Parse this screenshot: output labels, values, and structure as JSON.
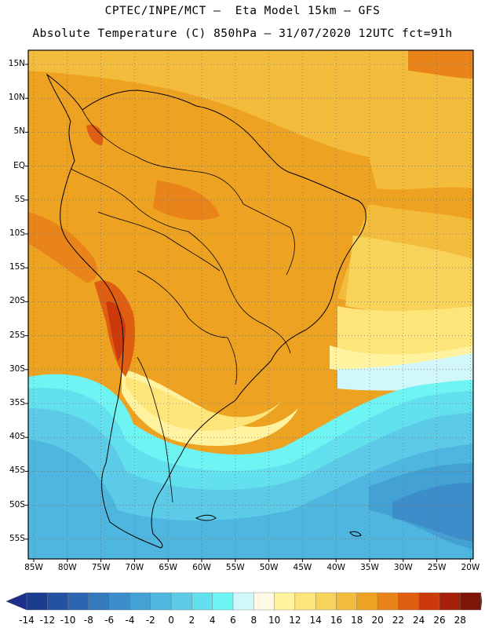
{
  "header": {
    "line1": "CPTEC/INPE/MCT –  Eta Model 15km – GFS",
    "line2": "Absolute Temperature (C) 850hPa – 31/07/2020 12UTC fct=91h"
  },
  "latitude_labels": [
    "15N",
    "10N",
    "5N",
    "EQ",
    "5S",
    "10S",
    "15S",
    "20S",
    "25S",
    "30S",
    "35S",
    "40S",
    "45S",
    "50S",
    "55S"
  ],
  "longitude_labels": [
    "85W",
    "80W",
    "75W",
    "70W",
    "65W",
    "60W",
    "55W",
    "50W",
    "45W",
    "40W",
    "35W",
    "30W",
    "25W",
    "20W"
  ],
  "colorbar": {
    "labels": [
      "-14",
      "-12",
      "-10",
      "-8",
      "-6",
      "-4",
      "-2",
      "0",
      "2",
      "4",
      "6",
      "8",
      "10",
      "12",
      "14",
      "16",
      "18",
      "20",
      "22",
      "24",
      "26",
      "28"
    ],
    "colors": [
      "#1c3d8f",
      "#2452a0",
      "#2c66b0",
      "#3479bd",
      "#3c8dc9",
      "#44a1d4",
      "#4fb6df",
      "#5ccbe8",
      "#63e0ee",
      "#6ff4f4",
      "#d2f7fb",
      "#fff9e6",
      "#fff3a0",
      "#fde57a",
      "#f8d35a",
      "#f4bc3c",
      "#eea221",
      "#e9841a",
      "#df5e12",
      "#cc3a0c",
      "#a52009",
      "#7d1606"
    ],
    "under_color": "#1d2f8a",
    "over_color": "#7a0f1e"
  }
}
